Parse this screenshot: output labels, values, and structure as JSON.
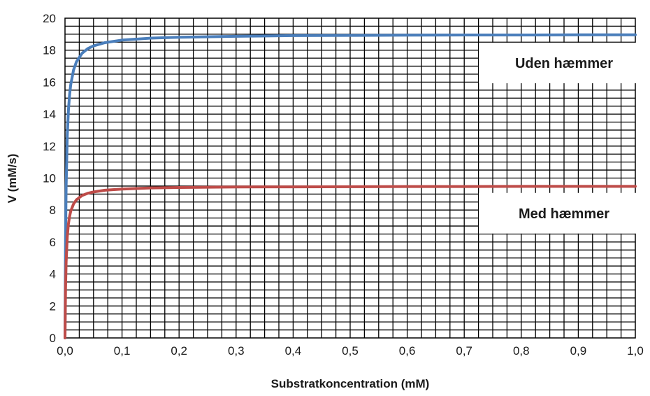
{
  "chart_data": {
    "type": "line",
    "xlabel": "Substratkoncentration (mM)",
    "ylabel": "V (mM/s)",
    "xlim": [
      0,
      1.0
    ],
    "ylim": [
      0,
      20
    ],
    "x_ticks": [
      "0,0",
      "0,1",
      "0,2",
      "0,3",
      "0,4",
      "0,5",
      "0,6",
      "0,7",
      "0,8",
      "0,9",
      "1,0"
    ],
    "y_ticks": [
      "0",
      "2",
      "4",
      "6",
      "8",
      "10",
      "12",
      "14",
      "16",
      "18",
      "20"
    ],
    "grid": true,
    "series": [
      {
        "name": "Uden hæmmer",
        "color": "#4a7ebb",
        "x": [
          0,
          0.001,
          0.002,
          0.004,
          0.006,
          0.008,
          0.01,
          0.015,
          0.02,
          0.03,
          0.04,
          0.05,
          0.07,
          0.1,
          0.15,
          0.2,
          0.3,
          0.4,
          0.5,
          0.6,
          0.7,
          0.8,
          0.9,
          1.0
        ],
        "y": [
          0,
          6.33,
          9.5,
          12.67,
          14.25,
          15.2,
          15.83,
          16.76,
          17.27,
          17.81,
          18.1,
          18.27,
          18.47,
          18.63,
          18.75,
          18.81,
          18.87,
          18.91,
          18.92,
          18.94,
          18.95,
          18.95,
          18.96,
          18.96
        ]
      },
      {
        "name": "Med hæmmer",
        "color": "#be4b48",
        "x": [
          0,
          0.001,
          0.002,
          0.004,
          0.006,
          0.008,
          0.01,
          0.015,
          0.02,
          0.03,
          0.04,
          0.05,
          0.07,
          0.1,
          0.15,
          0.2,
          0.3,
          0.4,
          0.5,
          0.6,
          0.7,
          0.8,
          0.9,
          1.0
        ],
        "y": [
          0,
          3.17,
          4.75,
          6.33,
          7.13,
          7.6,
          7.92,
          8.38,
          8.64,
          8.91,
          9.05,
          9.13,
          9.24,
          9.31,
          9.38,
          9.41,
          9.44,
          9.45,
          9.46,
          9.47,
          9.47,
          9.48,
          9.48,
          9.48
        ]
      }
    ],
    "annotations": [
      {
        "text": "Uden hæmmer",
        "x": 0.875,
        "y": 17.2
      },
      {
        "text": "Med hæmmer",
        "x": 0.875,
        "y": 7.8
      }
    ]
  }
}
